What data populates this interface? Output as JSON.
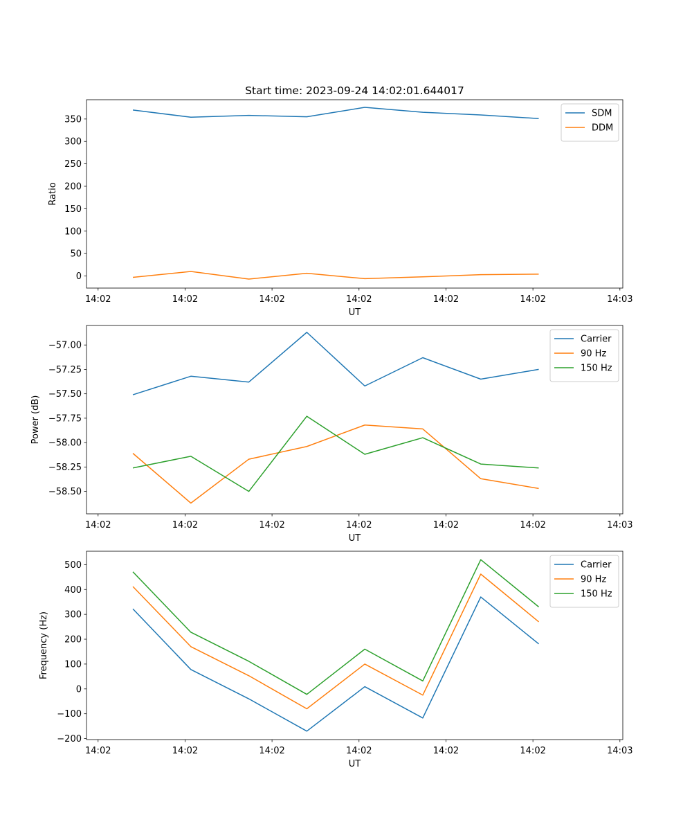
{
  "title": "Start time: 2023-09-24 14:02:01.644017",
  "colors": {
    "blue": "#1f77b4",
    "orange": "#ff7f0e",
    "green": "#2ca02c"
  },
  "chart_data": [
    {
      "type": "line",
      "title": "Start time: 2023-09-24 14:02:01.644017",
      "xlabel": "UT",
      "ylabel": "Ratio",
      "x": [
        1,
        2,
        3,
        4,
        5,
        6,
        7,
        8
      ],
      "xlim": [
        0.2,
        9.45
      ],
      "xticks": [
        0.4,
        1.9,
        3.4,
        4.9,
        6.4,
        7.9,
        9.4
      ],
      "xtick_labels": [
        "14:02",
        "14:02",
        "14:02",
        "14:02",
        "14:02",
        "14:02",
        "14:03"
      ],
      "ylim": [
        -27,
        393
      ],
      "yticks": [
        0,
        50,
        100,
        150,
        200,
        250,
        300,
        350
      ],
      "ytick_labels": [
        "0",
        "50",
        "100",
        "150",
        "200",
        "250",
        "300",
        "350"
      ],
      "legend": "top-right",
      "series": [
        {
          "name": "SDM",
          "color": "#1f77b4",
          "values": [
            370,
            354,
            358,
            355,
            376,
            365,
            359,
            351
          ]
        },
        {
          "name": "DDM",
          "color": "#ff7f0e",
          "values": [
            -3,
            10,
            -7,
            6,
            -6,
            -2,
            3,
            4
          ]
        }
      ]
    },
    {
      "type": "line",
      "xlabel": "UT",
      "ylabel": "Power (dB)",
      "x": [
        1,
        2,
        3,
        4,
        5,
        6,
        7,
        8
      ],
      "xlim": [
        0.2,
        9.45
      ],
      "xticks": [
        0.4,
        1.9,
        3.4,
        4.9,
        6.4,
        7.9,
        9.4
      ],
      "xtick_labels": [
        "14:02",
        "14:02",
        "14:02",
        "14:02",
        "14:02",
        "14:02",
        "14:03"
      ],
      "ylim": [
        -58.73,
        -56.8
      ],
      "yticks": [
        -58.5,
        -58.25,
        -58.0,
        -57.75,
        -57.5,
        -57.25,
        -57.0
      ],
      "ytick_labels": [
        "−58.50",
        "−58.25",
        "−58.00",
        "−57.75",
        "−57.50",
        "−57.25",
        "−57.00"
      ],
      "legend": "top-right",
      "series": [
        {
          "name": "Carrier",
          "color": "#1f77b4",
          "values": [
            -57.51,
            -57.32,
            -57.38,
            -56.87,
            -57.42,
            -57.13,
            -57.35,
            -57.25
          ]
        },
        {
          "name": "90 Hz",
          "color": "#ff7f0e",
          "values": [
            -58.11,
            -58.62,
            -58.17,
            -58.04,
            -57.82,
            -57.86,
            -58.37,
            -58.47
          ]
        },
        {
          "name": "150 Hz",
          "color": "#2ca02c",
          "values": [
            -58.26,
            -58.14,
            -58.5,
            -57.73,
            -58.12,
            -57.95,
            -58.22,
            -58.26
          ]
        }
      ]
    },
    {
      "type": "line",
      "xlabel": "UT",
      "ylabel": "Frequency (Hz)",
      "x": [
        1,
        2,
        3,
        4,
        5,
        6,
        7,
        8
      ],
      "xlim": [
        0.2,
        9.45
      ],
      "xticks": [
        0.4,
        1.9,
        3.4,
        4.9,
        6.4,
        7.9,
        9.4
      ],
      "xtick_labels": [
        "14:02",
        "14:02",
        "14:02",
        "14:02",
        "14:02",
        "14:02",
        "14:03"
      ],
      "ylim": [
        -204,
        554
      ],
      "yticks": [
        -200,
        -100,
        0,
        100,
        200,
        300,
        400,
        500
      ],
      "ytick_labels": [
        "−200",
        "−100",
        "0",
        "100",
        "200",
        "300",
        "400",
        "500"
      ],
      "legend": "top-right",
      "series": [
        {
          "name": "Carrier",
          "color": "#1f77b4",
          "values": [
            322,
            78,
            -40,
            -170,
            9,
            -117,
            370,
            181
          ]
        },
        {
          "name": "90 Hz",
          "color": "#ff7f0e",
          "values": [
            412,
            170,
            53,
            -80,
            100,
            -25,
            462,
            270
          ]
        },
        {
          "name": "150 Hz",
          "color": "#2ca02c",
          "values": [
            471,
            228,
            111,
            -22,
            160,
            32,
            520,
            330
          ]
        }
      ]
    }
  ]
}
